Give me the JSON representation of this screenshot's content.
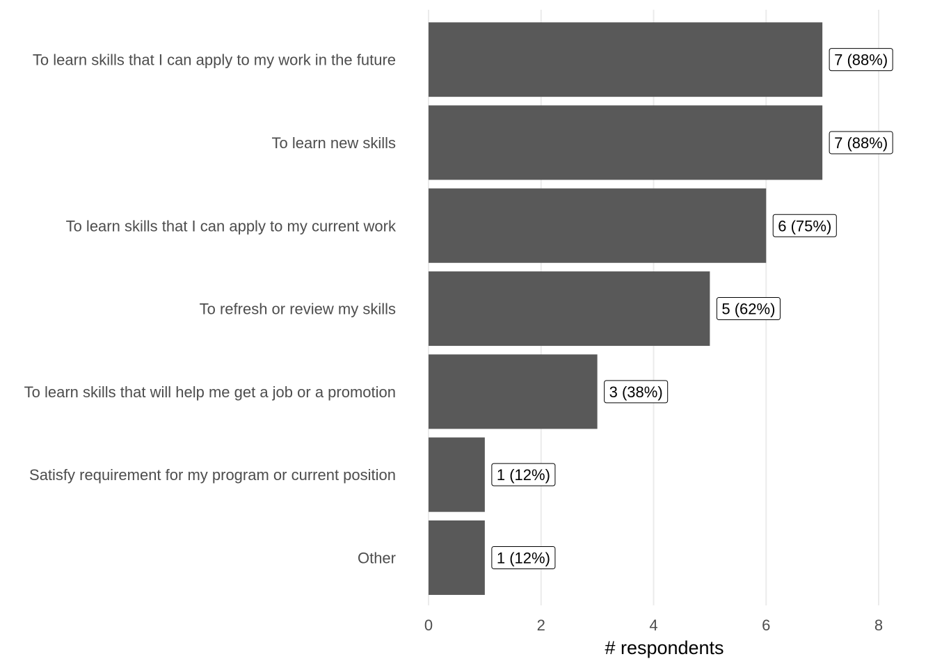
{
  "chart_data": {
    "type": "bar",
    "orientation": "horizontal",
    "categories": [
      "To learn skills that I can apply to my work in the future",
      "To learn new skills",
      "To learn skills that I can apply to my current work",
      "To refresh or review my skills",
      "To learn skills that will help me get a job or a promotion",
      "Satisfy requirement for my program or current position",
      "Other"
    ],
    "values": [
      7,
      7,
      6,
      5,
      3,
      1,
      1
    ],
    "data_labels": [
      "7 (88%)",
      "7 (88%)",
      "6 (75%)",
      "5 (62%)",
      "3 (38%)",
      "1 (12%)",
      "1 (12%)"
    ],
    "title": "",
    "xlabel": "# respondents",
    "ylabel": "",
    "xlim": [
      0,
      8
    ],
    "xticks": [
      0,
      2,
      4,
      6,
      8
    ],
    "grid": "vertical major",
    "legend": "none",
    "bar_color": "#595959"
  }
}
